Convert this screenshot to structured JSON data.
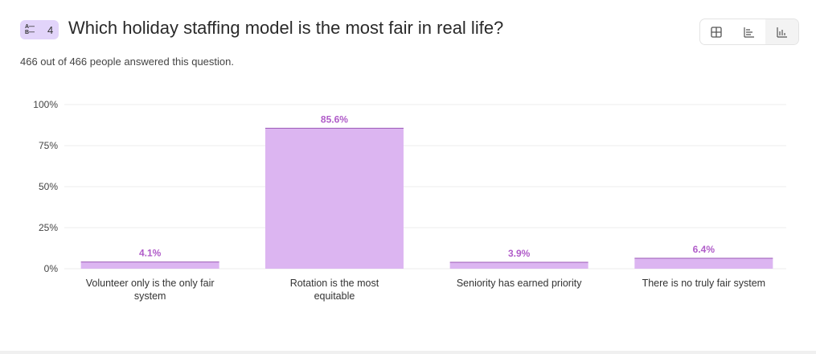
{
  "question": {
    "number": "4",
    "title": "Which holiday staffing model is the most fair in real life?",
    "subtitle": "466 out of 466 people answered this question."
  },
  "view_toggle": [
    {
      "icon": "table-icon"
    },
    {
      "icon": "horizontal-bar-icon"
    },
    {
      "icon": "vertical-bar-icon",
      "active": true
    }
  ],
  "colors": {
    "bar": "#dcb5f1",
    "bar_top": "#9b59b6",
    "label": "#b05cc9"
  },
  "chart_data": {
    "type": "bar",
    "categories": [
      [
        "Volunteer only is the only fair",
        "system"
      ],
      [
        "Rotation is the most",
        "equitable"
      ],
      [
        "Seniority has earned priority"
      ],
      [
        "There is no truly fair system"
      ]
    ],
    "values": [
      4.1,
      85.6,
      3.9,
      6.4
    ],
    "value_labels": [
      "4.1%",
      "85.6%",
      "3.9%",
      "6.4%"
    ],
    "yticks": [
      "0%",
      "25%",
      "50%",
      "75%",
      "100%"
    ],
    "ylim": [
      0,
      100
    ],
    "grid": true,
    "title": "",
    "xlabel": "",
    "ylabel": ""
  }
}
